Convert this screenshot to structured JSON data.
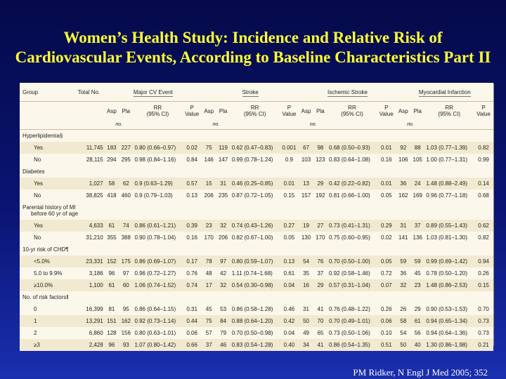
{
  "title": {
    "line1": "Women’s Health Study: Incidence and Relative Risk of",
    "line2": "Cardiovascular Events, According to Baseline Characteristics Part II"
  },
  "table": {
    "headers": {
      "group": "Group",
      "total": "Total No.",
      "sections": [
        "Major CV Event",
        "Stroke",
        "Ischemic Stroke",
        "Myocardial Infarction"
      ],
      "sub": {
        "asp": "Asp",
        "pla": "Pla",
        "rr": "RR",
        "ci": "(95% CI)",
        "p": "P",
        "pval": "Value",
        "no": "no."
      }
    },
    "rows": [
      {
        "type": "group",
        "label": "Hyperlipidemia§"
      },
      {
        "type": "data",
        "band": true,
        "label": "Yes",
        "total": "11,745",
        "cells": [
          "183",
          "227",
          "0.80 (0.66–0.97)",
          "0.02",
          "75",
          "119",
          "0.62 (0.47–0.83)",
          "0.001",
          "67",
          "98",
          "0.68 (0.50–0.93)",
          "0.01",
          "92",
          "88",
          "1.03 (0.77–1.39)",
          "0.82"
        ]
      },
      {
        "type": "data",
        "band": false,
        "label": "No",
        "total": "28,115",
        "cells": [
          "294",
          "295",
          "0.98 (0.84–1.16)",
          "0.84",
          "146",
          "147",
          "0.99 (0.78–1.24)",
          "0.9",
          "103",
          "123",
          "0.83 (0.64–1.08)",
          "0.16",
          "106",
          "105",
          "1.00 (0.77–1.31)",
          "0.99"
        ]
      },
      {
        "type": "group",
        "label": "Diabetes"
      },
      {
        "type": "data",
        "band": true,
        "label": "Yes",
        "total": "1,027",
        "cells": [
          "58",
          "62",
          "0.9 (0.63–1.29)",
          "0.57",
          "15",
          "31",
          "0.46 (0.25–0.85)",
          "0.01",
          "13",
          "29",
          "0.42 (0.22–0.82)",
          "0.01",
          "36",
          "24",
          "1.48 (0.88–2.49)",
          "0.14"
        ]
      },
      {
        "type": "data",
        "band": false,
        "label": "No",
        "total": "38,825",
        "cells": [
          "418",
          "460",
          "0.9 (0.79–1.03)",
          "0.13",
          "206",
          "235",
          "0.87 (0.72–1.05)",
          "0.15",
          "157",
          "192",
          "0.81 (0.66–1.00)",
          "0.05",
          "162",
          "169",
          "0.96 (0.77–1.18)",
          "0.68"
        ]
      },
      {
        "type": "group2",
        "label": "Parental history of MI",
        "label2": "before 60 yr of age"
      },
      {
        "type": "data",
        "band": true,
        "label": "Yes",
        "total": "4,633",
        "cells": [
          "61",
          "74",
          "0.86 (0.61–1.21)",
          "0.39",
          "23",
          "32",
          "0.74 (0.43–1.26)",
          "0.27",
          "19",
          "27",
          "0.73 (0.41–1.31)",
          "0.29",
          "31",
          "37",
          "0.89 (0.55–1.43)",
          "0.62"
        ]
      },
      {
        "type": "data",
        "band": false,
        "label": "No",
        "total": "31,210",
        "cells": [
          "355",
          "388",
          "0.90 (0.78–1.04)",
          "0.16",
          "170",
          "206",
          "0.82 (0.67–1.00)",
          "0.05",
          "130",
          "170",
          "0.75 (0.60–0.95)",
          "0.02",
          "141",
          "136",
          "1.03 (0.81–1.30)",
          "0.82"
        ]
      },
      {
        "type": "group",
        "label": "10-yr risk of CHD¶"
      },
      {
        "type": "data",
        "band": true,
        "label": "<5.0%",
        "total": "23,331",
        "cells": [
          "152",
          "175",
          "0.86 (0.69–1.07)",
          "0.17",
          "78",
          "97",
          "0.80 (0.59–1.07)",
          "0.13",
          "54",
          "76",
          "0.70 (0.50–1.00)",
          "0.05",
          "59",
          "59",
          "0.99 (0.69–1.42)",
          "0.94"
        ]
      },
      {
        "type": "data",
        "band": false,
        "label": "5.0 to 9.9%",
        "total": "3,186",
        "cells": [
          "96",
          "97",
          "0.96 (0.72–1.27)",
          "0.76",
          "48",
          "42",
          "1.11 (0.74–1.68)",
          "0.61",
          "35",
          "37",
          "0.92 (0.58–1.46)",
          "0.72",
          "36",
          "45",
          "0.78 (0.50–1.20)",
          "0.26"
        ]
      },
      {
        "type": "data",
        "band": true,
        "label": "≥10.0%",
        "total": "1,100",
        "cells": [
          "61",
          "60",
          "1.06 (0.74–1.52)",
          "0.74",
          "17",
          "32",
          "0.54 (0.30–0.98)",
          "0.04",
          "16",
          "29",
          "0.57 (0.31–1.04)",
          "0.07",
          "32",
          "23",
          "1.48 (0.86–2.53)",
          "0.15"
        ]
      },
      {
        "type": "group",
        "label": "No. of risk factors‖"
      },
      {
        "type": "data",
        "band": false,
        "label": "0",
        "total": "16,399",
        "cells": [
          "81",
          "95",
          "0.86 (0.64–1.15)",
          "0.31",
          "45",
          "53",
          "0.86 (0.58–1.28)",
          "0.46",
          "31",
          "41",
          "0.76 (0.48–1.22)",
          "0.26",
          "26",
          "29",
          "0.90 (0.53–1.53)",
          "0.70"
        ]
      },
      {
        "type": "data",
        "band": true,
        "label": "1",
        "total": "13,291",
        "cells": [
          "151",
          "162",
          "0.92 (0.73–1.14)",
          "0.44",
          "75",
          "84",
          "0.88 (0.64–1.20)",
          "0.42",
          "50",
          "70",
          "0.70 (0.49–1.01)",
          "0.06",
          "58",
          "61",
          "0.94 (0.65–1.34)",
          "0.73"
        ]
      },
      {
        "type": "data",
        "band": false,
        "label": "2",
        "total": "6,860",
        "cells": [
          "128",
          "156",
          "0.80 (0.63–1.01)",
          "0.06",
          "57",
          "79",
          "0.70 (0.50–0.98)",
          "0.04",
          "49",
          "65",
          "0.73 (0.50–1.06)",
          "0.10",
          "54",
          "56",
          "0.94 (0.64–1.36)",
          "0.73"
        ]
      },
      {
        "type": "data",
        "band": true,
        "label": "≥3",
        "total": "2,428",
        "cells": [
          "96",
          "93",
          "1.07 (0.80–1.42)",
          "0.66",
          "37",
          "46",
          "0.83 (0.54–1.28)",
          "0.40",
          "34",
          "41",
          "0.86 (0.54–1.35)",
          "0.51",
          "50",
          "40",
          "1.30 (0.86–1.98)",
          "0.21"
        ]
      }
    ]
  },
  "citation": "PM Ridker, N Engl J Med 2005; 352",
  "colors": {
    "background": "#0a1472",
    "title": "#ffff33",
    "table_bg": "#fbf7ea",
    "band": "#f1ead0"
  }
}
